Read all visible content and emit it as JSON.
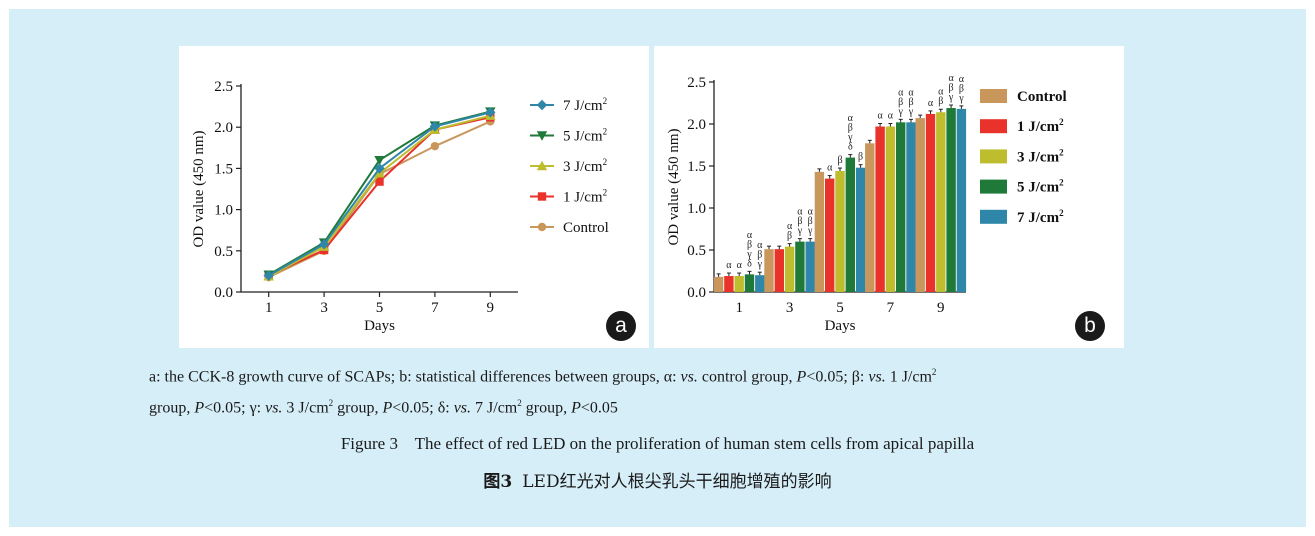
{
  "chart_data": [
    {
      "type": "line",
      "panel_label": "a",
      "xlabel": "Days",
      "ylabel": "OD value (450 nm)",
      "x": [
        1,
        3,
        5,
        7,
        9
      ],
      "ylim": [
        0.0,
        2.5
      ],
      "yticks": [
        "0.0",
        "0.5",
        "1.0",
        "1.5",
        "2.0",
        "2.5"
      ],
      "legend_position": "right",
      "series": [
        {
          "name": "7 J/cm",
          "sup": "2",
          "color": "#2e86a8",
          "marker": "diamond",
          "values": [
            0.2,
            0.58,
            1.5,
            2.01,
            2.18
          ]
        },
        {
          "name": "5 J/cm",
          "sup": "2",
          "color": "#1f7a3a",
          "marker": "triangle-down",
          "values": [
            0.21,
            0.6,
            1.6,
            2.02,
            2.19
          ]
        },
        {
          "name": "3 J/cm",
          "sup": "2",
          "color": "#bdbd2e",
          "marker": "triangle-up",
          "values": [
            0.19,
            0.55,
            1.44,
            1.97,
            2.14
          ]
        },
        {
          "name": "1 J/cm",
          "sup": "2",
          "color": "#e8322a",
          "marker": "square",
          "values": [
            0.2,
            0.51,
            1.34,
            1.97,
            2.12
          ]
        },
        {
          "name": "Control",
          "sup": "",
          "color": "#c9975c",
          "marker": "circle",
          "values": [
            0.18,
            0.5,
            1.43,
            1.77,
            2.07
          ]
        }
      ]
    },
    {
      "type": "bar",
      "panel_label": "b",
      "xlabel": "Days",
      "ylabel": "OD value (450 nm)",
      "categories": [
        "1",
        "3",
        "5",
        "7",
        "9"
      ],
      "ylim": [
        0.0,
        2.5
      ],
      "yticks": [
        "0.0",
        "0.5",
        "1.0",
        "1.5",
        "2.0",
        "2.5"
      ],
      "legend_position": "right",
      "series": [
        {
          "name": "Control",
          "sup": "",
          "color": "#c9975c",
          "values": [
            0.18,
            0.51,
            1.43,
            1.77,
            2.07
          ]
        },
        {
          "name": "1 J/cm",
          "sup": "2",
          "color": "#e8322a",
          "values": [
            0.19,
            0.51,
            1.35,
            1.97,
            2.12
          ]
        },
        {
          "name": "3 J/cm",
          "sup": "2",
          "color": "#bdbd2e",
          "values": [
            0.19,
            0.54,
            1.44,
            1.97,
            2.14
          ]
        },
        {
          "name": "5 J/cm",
          "sup": "2",
          "color": "#1f7a3a",
          "values": [
            0.21,
            0.6,
            1.6,
            2.02,
            2.19
          ]
        },
        {
          "name": "7 J/cm",
          "sup": "2",
          "color": "#2e86a8",
          "values": [
            0.2,
            0.6,
            1.48,
            2.02,
            2.18
          ]
        }
      ],
      "annotations": [
        [
          "",
          "α",
          "α",
          "αβγδ",
          "αβγ"
        ],
        [
          "",
          "",
          "αβ",
          "αβγ",
          "αβγ"
        ],
        [
          "",
          "α",
          "β",
          "αβγδ",
          "β"
        ],
        [
          "",
          "α",
          "α",
          "αβγ",
          "αβγ"
        ],
        [
          "",
          "α",
          "αβ",
          "αβγ",
          "αβγ"
        ]
      ]
    }
  ],
  "caption": {
    "l1": {
      "t1": "a: the CCK-8 growth curve of SCAPs; b: statistical differences between groups, α: ",
      "t2": "vs.",
      "t3": " control group, ",
      "t4": "P",
      "t5": "<0.05; β: ",
      "t6": "vs.",
      "t7": " 1 J/cm",
      "t8": "2"
    },
    "l2": {
      "t1": "group, ",
      "t2": "P",
      "t3": "<0.05; γ: ",
      "t4": "vs.",
      "t5": " 3 J/cm",
      "t6": "2",
      "t7": " group, ",
      "t8": "P",
      "t9": "<0.05; δ: ",
      "t10": "vs.",
      "t11": " 7 J/cm",
      "t12": "2",
      "t13": " group, ",
      "t14": "P",
      "t15": "<0.05"
    },
    "figure_en": "Figure 3    The effect of red LED on the proliferation of human stem cells from apical papilla",
    "figure_zh_label": "图3",
    "figure_zh": "LED红光对人根尖乳头干细胞增殖的影响"
  }
}
